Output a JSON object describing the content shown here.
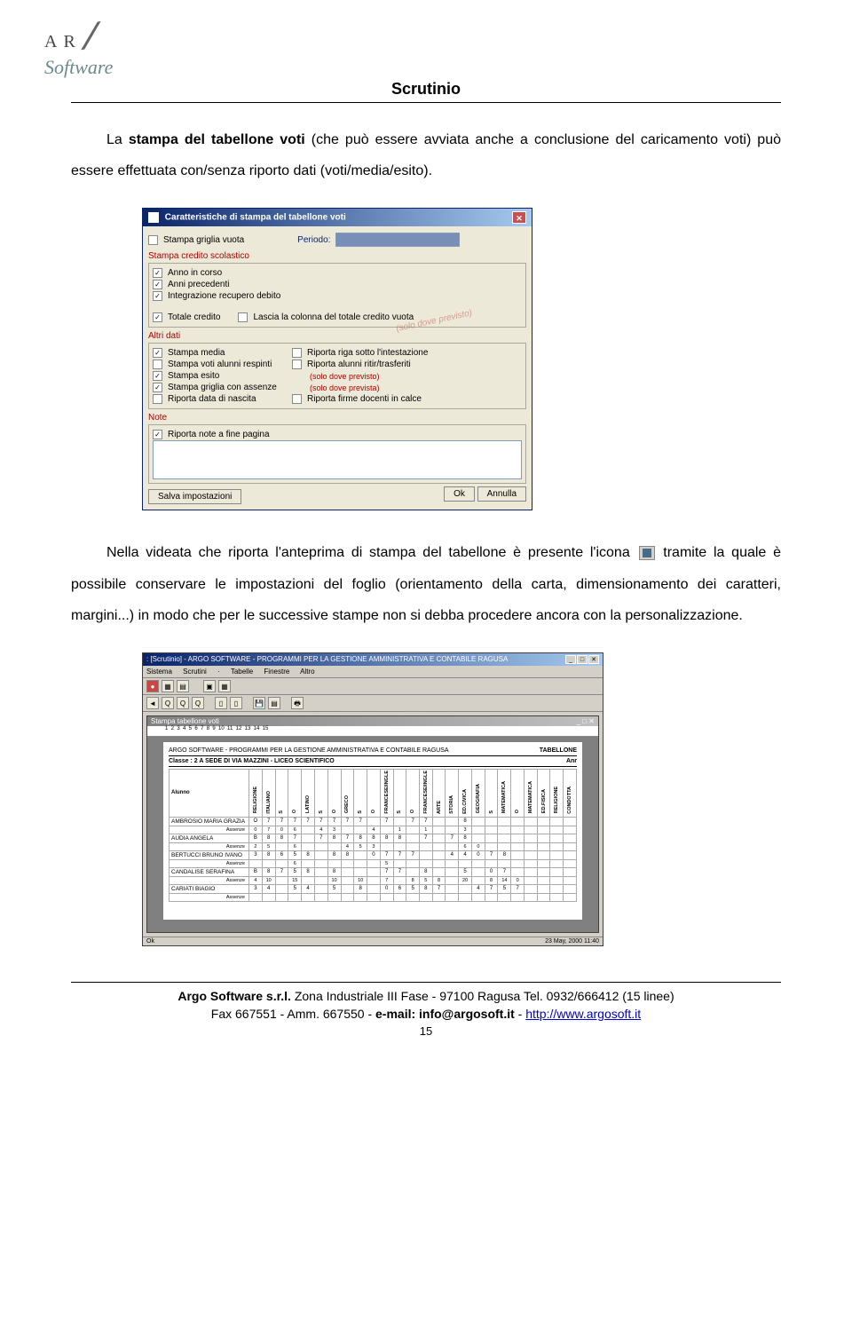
{
  "header_title": "Scrutinio",
  "logo_top": "ARGO",
  "logo_bottom": "Software",
  "para1_prefix": "La ",
  "para1_bold": "stampa del tabellone voti",
  "para1_rest": " (che può essere avviata anche a conclusione del caricamento voti) può essere effettuata con/senza riporto dati (voti/media/esito).",
  "para2_a": "Nella videata che riporta l'anteprima di stampa del tabellone è presente l'icona ",
  "para2_b": " tramite la quale è possibile conservare le impostazioni del foglio (orientamento della carta, dimensionamento dei caratteri, margini...) in modo che per le successive stampe non si debba procedere ancora con la personalizzazione.",
  "dialog": {
    "title": "Caratteristiche di stampa del tabellone voti",
    "periodo_label": "Periodo:",
    "top_items": [
      {
        "label": "Stampa griglia vuota",
        "checked": false
      }
    ],
    "credit_section": "Stampa credito scolastico",
    "credit_items": [
      {
        "label": "Anno in corso",
        "checked": true
      },
      {
        "label": "Anni precedenti",
        "checked": true
      },
      {
        "label": "Integrazione recupero debito",
        "checked": true
      },
      {
        "label": "Totale credito",
        "checked": true,
        "extra_chk": false,
        "extra_label": "Lascia la colonna del totale credito vuota"
      }
    ],
    "watermark": "(solo dove previsto)",
    "altri_section": "Altri dati",
    "altri_rows": [
      {
        "l_chk": true,
        "l_label": "Stampa media",
        "r_chk": false,
        "r_label": "Riporta riga sotto l'intestazione"
      },
      {
        "l_chk": false,
        "l_label": "Stampa voti alunni respinti",
        "r_chk": false,
        "r_label": "Riporta alunni ritir/trasferiti"
      },
      {
        "l_chk": true,
        "l_label": "Stampa esito",
        "note": "(solo dove previsto)"
      },
      {
        "l_chk": true,
        "l_label": "Stampa griglia con assenze",
        "note": "(solo dove prevista)"
      },
      {
        "l_chk": false,
        "l_label": "Riporta data di nascita",
        "r_chk": false,
        "r_label": "Riporta firme docenti in calce"
      }
    ],
    "note_section": "Note",
    "note_item": {
      "label": "Riporta note a fine pagina",
      "checked": true
    },
    "btn_save": "Salva impostazioni",
    "btn_ok": "Ok",
    "btn_cancel": "Annulla"
  },
  "win2": {
    "title": ": [Scrutinio] - ARGO SOFTWARE - PROGRAMMI PER LA GESTIONE AMMINISTRATIVA E CONTABILE RAGUSA",
    "menus": [
      "Sistema",
      "Scrutini",
      "·",
      "Tabelle",
      "Finestre",
      "Altro"
    ],
    "sub_title": "Stampa tabellone voti",
    "doc_header_left": "ARGO SOFTWARE - PROGRAMMI PER LA GESTIONE AMMINISTRATIVA E CONTABILE RAGUSA",
    "doc_header_right": "TABELLONE",
    "doc_class": "Classe : 2 A SEDE DI VIA MAZZINI - LICEO SCIENTIFICO",
    "doc_class_right": "Anr",
    "first_col": "Alunno",
    "abs_label": "Assenze",
    "subjects": [
      "RELIGIONE",
      "ITALIANO",
      "S",
      "O",
      "LATINO",
      "S",
      "O",
      "GRECO",
      "S",
      "O",
      "FRANCESE/INGLE",
      "S",
      "O",
      "FRANCESE/INGLE",
      "ARTE",
      "STORIA",
      "ED.CIVICA",
      "GEOGRAFIA",
      "S",
      "MATEMATICA",
      "O",
      "MATEMATICA",
      "ED.FISICA",
      "RELIGIONE",
      "CONDOTTA"
    ],
    "students": [
      {
        "name": "AMBROSIO MARIA GRAZIA",
        "g": [
          "O",
          "7",
          "7",
          "7",
          "7",
          "7",
          "7",
          "7",
          "7",
          "",
          "7",
          "",
          "7",
          "7",
          "",
          "",
          "8",
          ""
        ],
        "a": [
          "0",
          "7",
          "0",
          "6",
          "",
          "4",
          "3",
          "",
          "",
          "4",
          "",
          "1",
          "",
          "1",
          "",
          "",
          "3",
          ""
        ]
      },
      {
        "name": "AUDIA ANGELA",
        "g": [
          "B",
          "8",
          "8",
          "7",
          "",
          "7",
          "8",
          "7",
          "8",
          "8",
          "8",
          "8",
          "",
          "7",
          "",
          "7",
          "8",
          ""
        ],
        "a": [
          "2",
          "5",
          "",
          "6",
          "",
          "",
          "",
          "4",
          "5",
          "3",
          "",
          "",
          "",
          "",
          "",
          "",
          "6",
          "0"
        ]
      },
      {
        "name": "BERTUCCI BRUNO IVANO",
        "g": [
          "3",
          "8",
          "6",
          "5",
          "8",
          "",
          "8",
          "8",
          "",
          "0",
          "7",
          "7",
          "7",
          "",
          "",
          "4",
          "4",
          "0",
          "7",
          "8"
        ],
        "a": [
          "",
          "",
          "",
          "6",
          "",
          "",
          "",
          "",
          "",
          "",
          "5",
          "",
          "",
          "",
          "",
          "",
          "",
          ""
        ]
      },
      {
        "name": "CANDALISE SERAFINA",
        "g": [
          "B",
          "8",
          "7",
          "5",
          "8",
          "",
          "8",
          "",
          "",
          "",
          "7",
          "7",
          "",
          "8",
          "",
          "",
          "5",
          "",
          "0",
          "7",
          ""
        ],
        "a": [
          "4",
          "10",
          "",
          "15",
          "",
          "",
          "10",
          "",
          "10",
          "",
          "7",
          "",
          "8",
          "5",
          "8",
          "",
          "20",
          "",
          "8",
          "14",
          "0"
        ]
      },
      {
        "name": "CARIATI BIAGIO",
        "g": [
          "3",
          "4",
          "",
          "5",
          "4",
          "",
          "5",
          "",
          "8",
          "",
          "0",
          "6",
          "5",
          "8",
          "7",
          "",
          "",
          "4",
          "7",
          "5",
          "7"
        ],
        "a": [
          "",
          "",
          "",
          "",
          "",
          "",
          "",
          "",
          "",
          "",
          "",
          "",
          "",
          "",
          "",
          "",
          "",
          "",
          "",
          "",
          ""
        ]
      }
    ],
    "status_left": "Ok",
    "status_right": "23 May, 2000 11:40"
  },
  "footer": {
    "line1_a": "Argo Software s.r.l.",
    "line1_b": " Zona Industriale III Fase - 97100 Ragusa Tel. 0932/666412 (15 linee)",
    "line2_a": "Fax 667551 - Amm. 667550 - ",
    "line2_b": "e-mail: info@argosoft.it",
    "line2_c": " - ",
    "line2_link": "http://www.argosoft.it",
    "page_num": "15"
  }
}
